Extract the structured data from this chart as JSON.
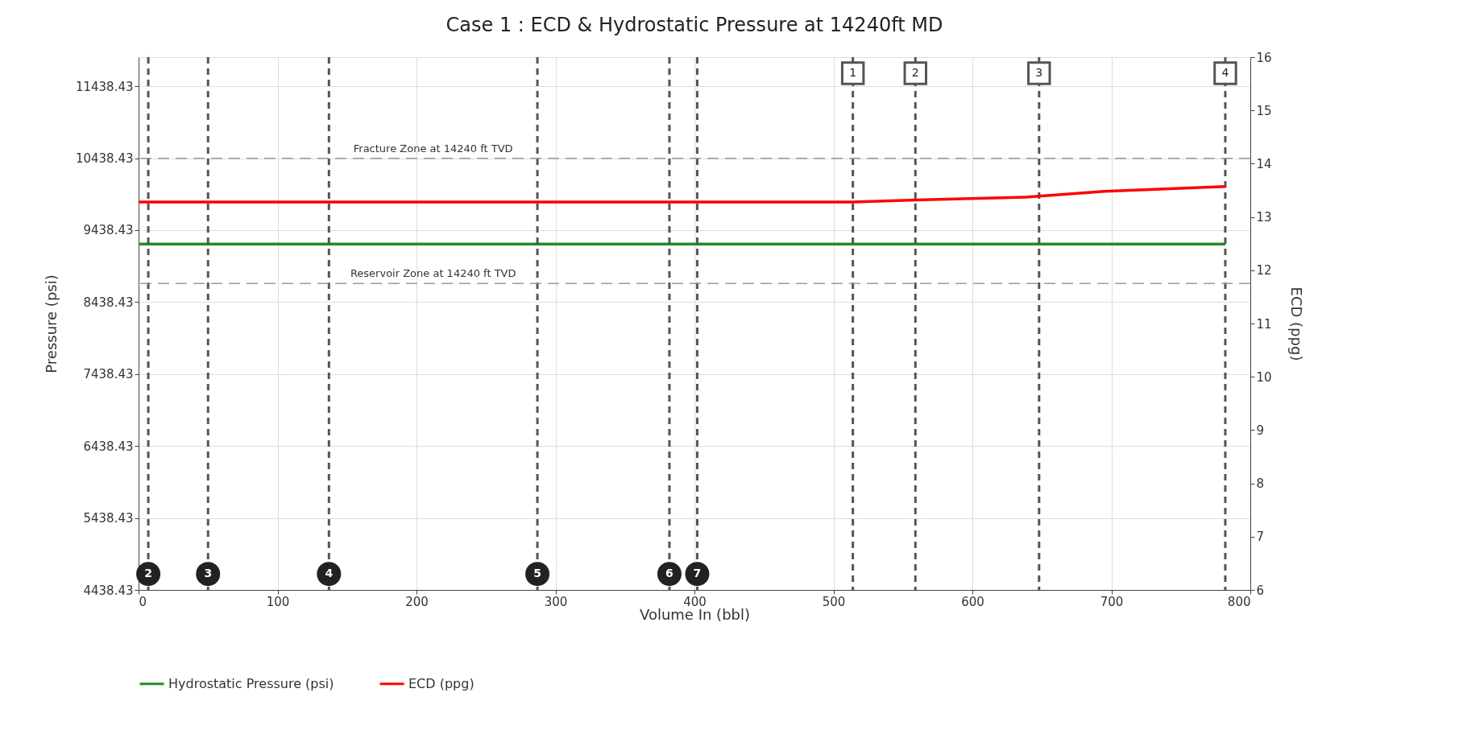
{
  "chart_data": {
    "type": "line",
    "title": "Case 1 : ECD & Hydrostatic Pressure at 14240ft MD",
    "xlabel": "Volume In (bbl)",
    "ylabel": "Pressure (psi)",
    "y2label": "ECD (ppg)",
    "series": [
      {
        "name": "Hydrostatic Pressure (psi)",
        "color": "#228b22",
        "x": [
          0,
          782
        ],
        "values": [
          9245,
          9245
        ]
      },
      {
        "name": "ECD (ppg)",
        "color": "#ff0000",
        "axis": "y2",
        "x": [
          0,
          514,
          559,
          638,
          695,
          782
        ],
        "values": [
          13.28,
          13.28,
          13.32,
          13.37,
          13.48,
          13.57
        ]
      }
    ],
    "xlim": [
      0,
      800
    ],
    "xticks": [
      0,
      100,
      200,
      300,
      400,
      500,
      600,
      700,
      800
    ],
    "ylim": [
      4438.43,
      11843
    ],
    "yticks": [
      4438.43,
      5438.43,
      6438.43,
      7438.43,
      8438.43,
      9438.43,
      10438.43,
      11438.43
    ],
    "y2lim": [
      6,
      16
    ],
    "y2ticks": [
      6,
      7,
      8,
      9,
      10,
      11,
      12,
      13,
      14,
      15,
      16
    ],
    "ref_lines": [
      {
        "axis": "y2",
        "value": 14.1,
        "label": "Fracture Zone at 14240 ft TVD",
        "color": "#999999",
        "line_style": "dashed"
      },
      {
        "axis": "y2",
        "value": 11.75,
        "label": "Reservoir Zone at 14240 ft TVD",
        "color": "#999999",
        "line_style": "dashed"
      },
      {
        "axis": "x",
        "value": 7,
        "color": "#555555",
        "line_style": "dashed"
      },
      {
        "axis": "x",
        "value": 50,
        "color": "#555555",
        "line_style": "dashed"
      },
      {
        "axis": "x",
        "value": 137,
        "color": "#555555",
        "line_style": "dashed"
      },
      {
        "axis": "x",
        "value": 287,
        "color": "#555555",
        "line_style": "dashed"
      },
      {
        "axis": "x",
        "value": 382,
        "color": "#555555",
        "line_style": "dashed"
      },
      {
        "axis": "x",
        "value": 402,
        "color": "#555555",
        "line_style": "dashed"
      },
      {
        "axis": "x",
        "value": 514,
        "color": "#555555",
        "line_style": "dashed"
      },
      {
        "axis": "x",
        "value": 559,
        "color": "#555555",
        "line_style": "dashed"
      },
      {
        "axis": "x",
        "value": 648,
        "color": "#555555",
        "line_style": "dashed"
      },
      {
        "axis": "x",
        "value": 782,
        "color": "#555555",
        "line_style": "dashed"
      }
    ],
    "annotations": [
      {
        "text": "2",
        "x": 7,
        "y": 4660
      },
      {
        "text": "3",
        "x": 50,
        "y": 4660
      },
      {
        "text": "4",
        "x": 137,
        "y": 4660
      },
      {
        "text": "5",
        "x": 287,
        "y": 4660
      },
      {
        "text": "6",
        "x": 382,
        "y": 4660
      },
      {
        "text": "7",
        "x": 402,
        "y": 4660
      },
      {
        "text": "1",
        "x": 514,
        "y": 11620
      },
      {
        "text": "2",
        "x": 559,
        "y": 11620
      },
      {
        "text": "3",
        "x": 648,
        "y": 11620
      },
      {
        "text": "4",
        "x": 782,
        "y": 11620
      }
    ],
    "grid": true,
    "legend": "bottom",
    "marker": "none",
    "line_style": "solid"
  }
}
